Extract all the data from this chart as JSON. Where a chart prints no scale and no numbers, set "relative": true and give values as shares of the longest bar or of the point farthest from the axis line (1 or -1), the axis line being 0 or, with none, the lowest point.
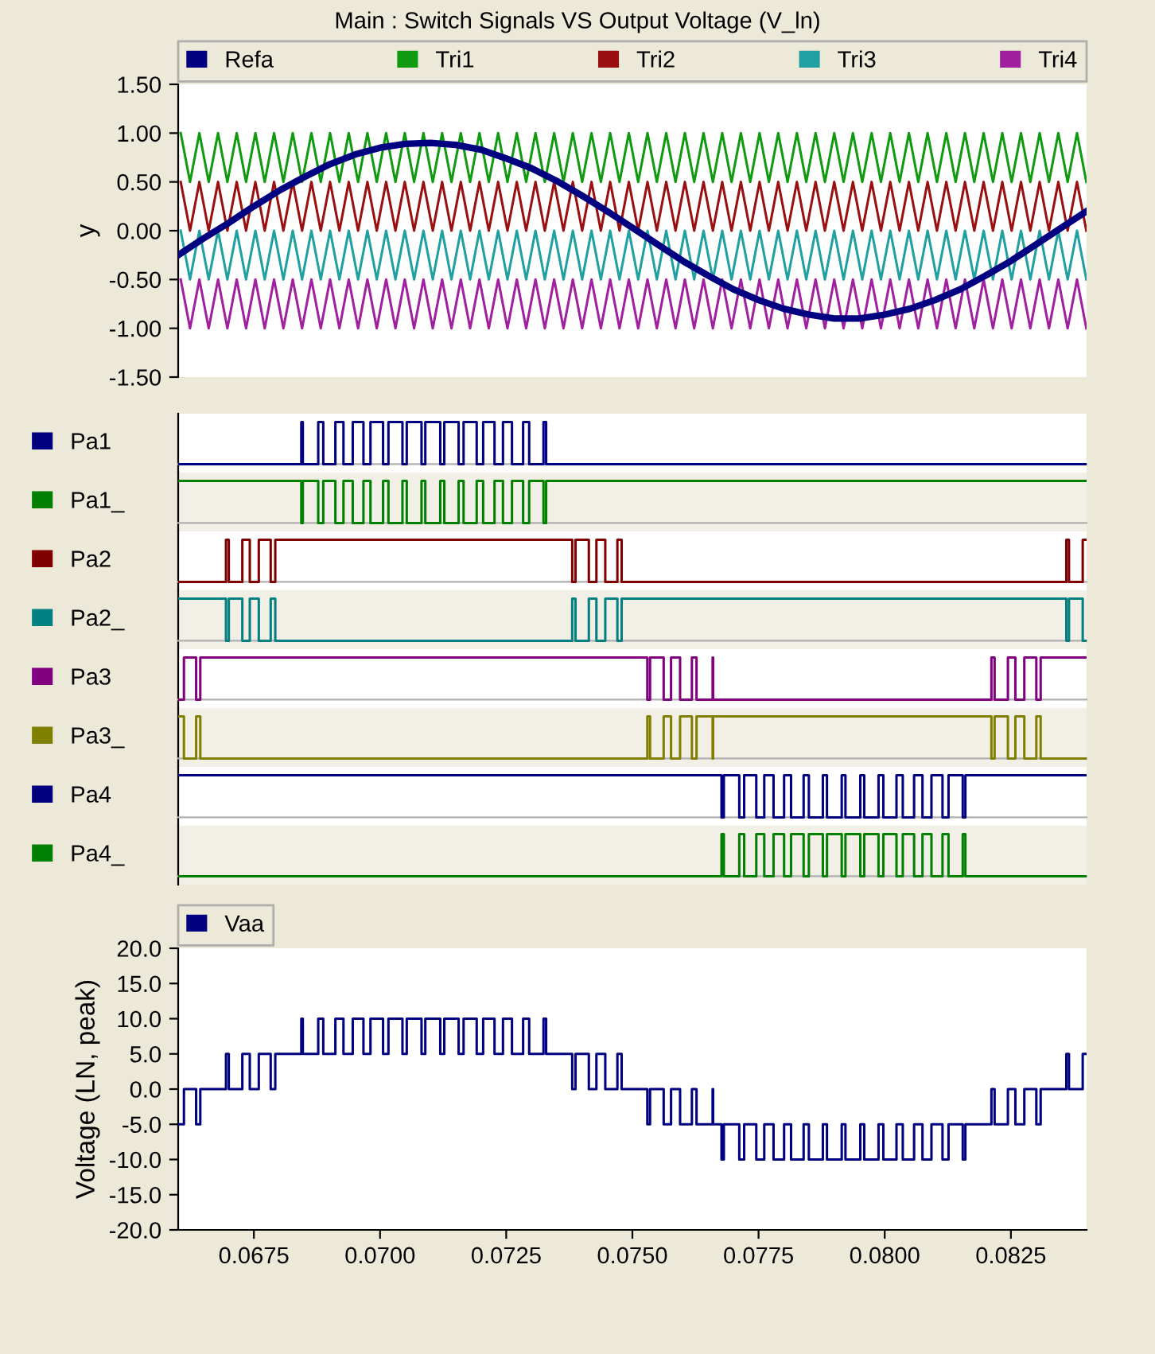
{
  "chart_data": [
    {
      "type": "line",
      "title": "Main : Switch Signals VS Output Voltage (V_ln)",
      "ylabel": "y",
      "xlim": [
        0.066,
        0.084
      ],
      "ylim": [
        -1.5,
        1.5
      ],
      "yticks": [
        {
          "value": 1.5,
          "label": "1.50"
        },
        {
          "value": 1.0,
          "label": "1.00"
        },
        {
          "value": 0.5,
          "label": "0.50"
        },
        {
          "value": 0,
          "label": "0.00"
        },
        {
          "value": -0.5,
          "label": "-0.50"
        },
        {
          "value": -1.0,
          "label": "-1.00"
        },
        {
          "value": -1.5,
          "label": "-1.50"
        }
      ],
      "tick_labels": "y",
      "legend": "top",
      "x": [
        0.06605,
        0.066235,
        0.06642,
        0.066605,
        0.06679,
        0.066975,
        0.06716,
        0.067345,
        0.06753,
        0.067715,
        0.0679,
        0.068085,
        0.06827,
        0.068455,
        0.06864,
        0.068825,
        0.06901,
        0.069195,
        0.06938,
        0.069565,
        0.06975,
        0.069935,
        0.07012,
        0.070305,
        0.07049,
        0.070675,
        0.07086,
        0.071045,
        0.07123,
        0.071415,
        0.0716,
        0.071785,
        0.07197,
        0.072155,
        0.07234,
        0.072525,
        0.07271,
        0.072895,
        0.07308,
        0.073265,
        0.07345,
        0.073635,
        0.07382,
        0.074005,
        0.07419,
        0.074375,
        0.07456,
        0.074745,
        0.07493,
        0.075115,
        0.0753,
        0.075485,
        0.07567,
        0.075855,
        0.07604,
        0.076225,
        0.07641,
        0.076595,
        0.07678,
        0.076965,
        0.07715,
        0.077335,
        0.07752,
        0.077705,
        0.07789,
        0.078075,
        0.07826,
        0.078445,
        0.07863,
        0.078815,
        0.079,
        0.079185,
        0.07937,
        0.079555,
        0.07974,
        0.079925,
        0.08011,
        0.080295,
        0.08048,
        0.080665,
        0.08085,
        0.081035,
        0.08122,
        0.081405,
        0.08159,
        0.081775,
        0.08196,
        0.082145,
        0.08233,
        0.082515,
        0.0827,
        0.082885,
        0.08307,
        0.083255,
        0.08344,
        0.083625,
        0.08381,
        0.083995
      ],
      "series": [
        {
          "name": "Refa",
          "color": "#000080",
          "x": [
            0.066,
            0.0665,
            0.067,
            0.0675,
            0.068,
            0.0685,
            0.069,
            0.0695,
            0.07,
            0.0705,
            0.071,
            0.0715,
            0.072,
            0.0725,
            0.073,
            0.0735,
            0.074,
            0.0745,
            0.075,
            0.0755,
            0.076,
            0.0765,
            0.077,
            0.0775,
            0.078,
            0.0785,
            0.079,
            0.0795,
            0.08,
            0.0805,
            0.081,
            0.0815,
            0.082,
            0.0825,
            0.083,
            0.0835,
            0.084
          ],
          "values": [
            -0.25,
            -0.08,
            0.08,
            0.25,
            0.41,
            0.55,
            0.68,
            0.78,
            0.85,
            0.89,
            0.9,
            0.88,
            0.83,
            0.74,
            0.64,
            0.51,
            0.36,
            0.2,
            0.03,
            -0.14,
            -0.31,
            -0.46,
            -0.6,
            -0.71,
            -0.8,
            -0.86,
            -0.9,
            -0.9,
            -0.86,
            -0.8,
            -0.71,
            -0.6,
            -0.46,
            -0.31,
            -0.14,
            0.03,
            0.2
          ]
        },
        {
          "name": "Tri1",
          "color": "#109a10",
          "values": [
            1.0,
            0.5,
            1.0,
            0.5,
            1.0,
            0.5,
            1.0,
            0.5,
            1.0,
            0.5,
            1.0,
            0.5,
            1.0,
            0.5,
            1.0,
            0.5,
            1.0,
            0.5,
            1.0,
            0.5,
            1.0,
            0.5,
            1.0,
            0.5,
            1.0,
            0.5,
            1.0,
            0.5,
            1.0,
            0.5,
            1.0,
            0.5,
            1.0,
            0.5,
            1.0,
            0.5,
            1.0,
            0.5,
            1.0,
            0.5,
            1.0,
            0.5,
            1.0,
            0.5,
            1.0,
            0.5,
            1.0,
            0.5,
            1.0,
            0.5,
            1.0,
            0.5,
            1.0,
            0.5,
            1.0,
            0.5,
            1.0,
            0.5,
            1.0,
            0.5,
            1.0,
            0.5,
            1.0,
            0.5,
            1.0,
            0.5,
            1.0,
            0.5,
            1.0,
            0.5,
            1.0,
            0.5,
            1.0,
            0.5,
            1.0,
            0.5,
            1.0,
            0.5,
            1.0,
            0.5,
            1.0,
            0.5,
            1.0,
            0.5,
            1.0,
            0.5,
            1.0,
            0.5,
            1.0,
            0.5,
            1.0,
            0.5,
            1.0,
            0.5,
            1.0,
            0.5,
            1.0,
            0.5
          ]
        },
        {
          "name": "Tri2",
          "color": "#9a1010",
          "values": [
            0.5,
            0,
            0.5,
            0,
            0.5,
            0,
            0.5,
            0,
            0.5,
            0,
            0.5,
            0,
            0.5,
            0,
            0.5,
            0,
            0.5,
            0,
            0.5,
            0,
            0.5,
            0,
            0.5,
            0,
            0.5,
            0,
            0.5,
            0,
            0.5,
            0,
            0.5,
            0,
            0.5,
            0,
            0.5,
            0,
            0.5,
            0,
            0.5,
            0,
            0.5,
            0,
            0.5,
            0,
            0.5,
            0,
            0.5,
            0,
            0.5,
            0,
            0.5,
            0,
            0.5,
            0,
            0.5,
            0,
            0.5,
            0,
            0.5,
            0,
            0.5,
            0,
            0.5,
            0,
            0.5,
            0,
            0.5,
            0,
            0.5,
            0,
            0.5,
            0,
            0.5,
            0,
            0.5,
            0,
            0.5,
            0,
            0.5,
            0,
            0.5,
            0,
            0.5,
            0,
            0.5,
            0,
            0.5,
            0,
            0.5,
            0,
            0.5,
            0,
            0.5,
            0,
            0.5,
            0,
            0.5,
            0
          ]
        },
        {
          "name": "Tri3",
          "color": "#20a0a0",
          "values": [
            0,
            -0.5,
            0,
            -0.5,
            0,
            -0.5,
            0,
            -0.5,
            0,
            -0.5,
            0,
            -0.5,
            0,
            -0.5,
            0,
            -0.5,
            0,
            -0.5,
            0,
            -0.5,
            0,
            -0.5,
            0,
            -0.5,
            0,
            -0.5,
            0,
            -0.5,
            0,
            -0.5,
            0,
            -0.5,
            0,
            -0.5,
            0,
            -0.5,
            0,
            -0.5,
            0,
            -0.5,
            0,
            -0.5,
            0,
            -0.5,
            0,
            -0.5,
            0,
            -0.5,
            0,
            -0.5,
            0,
            -0.5,
            0,
            -0.5,
            0,
            -0.5,
            0,
            -0.5,
            0,
            -0.5,
            0,
            -0.5,
            0,
            -0.5,
            0,
            -0.5,
            0,
            -0.5,
            0,
            -0.5,
            0,
            -0.5,
            0,
            -0.5,
            0,
            -0.5,
            0,
            -0.5,
            0,
            -0.5,
            0,
            -0.5,
            0,
            -0.5,
            0,
            -0.5,
            0,
            -0.5,
            0,
            -0.5,
            0,
            -0.5,
            0,
            -0.5,
            0,
            -0.5,
            0,
            -0.5
          ]
        },
        {
          "name": "Tri4",
          "color": "#a020a0",
          "values": [
            -0.5,
            -1.0,
            -0.5,
            -1.0,
            -0.5,
            -1.0,
            -0.5,
            -1.0,
            -0.5,
            -1.0,
            -0.5,
            -1.0,
            -0.5,
            -1.0,
            -0.5,
            -1.0,
            -0.5,
            -1.0,
            -0.5,
            -1.0,
            -0.5,
            -1.0,
            -0.5,
            -1.0,
            -0.5,
            -1.0,
            -0.5,
            -1.0,
            -0.5,
            -1.0,
            -0.5,
            -1.0,
            -0.5,
            -1.0,
            -0.5,
            -1.0,
            -0.5,
            -1.0,
            -0.5,
            -1.0,
            -0.5,
            -1.0,
            -0.5,
            -1.0,
            -0.5,
            -1.0,
            -0.5,
            -1.0,
            -0.5,
            -1.0,
            -0.5,
            -1.0,
            -0.5,
            -1.0,
            -0.5,
            -1.0,
            -0.5,
            -1.0,
            -0.5,
            -1.0,
            -0.5,
            -1.0,
            -0.5,
            -1.0,
            -0.5,
            -1.0,
            -0.5,
            -1.0,
            -0.5,
            -1.0,
            -0.5,
            -1.0,
            -0.5,
            -1.0,
            -0.5,
            -1.0,
            -0.5,
            -1.0,
            -0.5,
            -1.0,
            -0.5,
            -1.0,
            -0.5,
            -1.0,
            -0.5,
            -1.0,
            -0.5,
            -1.0,
            -0.5,
            -1.0,
            -0.5,
            -1.0,
            -0.5,
            -1.0,
            -0.5,
            -1.0,
            -0.5,
            -1.0
          ]
        }
      ]
    },
    {
      "type": "step",
      "relative": true,
      "tick_labels": false,
      "legend": "left",
      "xlim": [
        0.066,
        0.084
      ],
      "x": [
        0.066,
        0.06844,
        0.06847,
        0.068775,
        0.068875,
        0.069115,
        0.069275,
        0.069459,
        0.069671,
        0.06981,
        0.07006,
        0.070166,
        0.070444,
        0.070529,
        0.070822,
        0.070897,
        0.071193,
        0.071273,
        0.071557,
        0.071655,
        0.071915,
        0.072043,
        0.072268,
        0.072436,
        0.072614,
        0.072835,
        0.072955,
        0.073239,
        0.073291,
        0.084
      ],
      "series": [
        {
          "name": "Pa1",
          "color": "#000080",
          "values": [
            0,
            1,
            0,
            1,
            0,
            1,
            0,
            1,
            0,
            1,
            0,
            1,
            0,
            1,
            0,
            1,
            0,
            1,
            0,
            1,
            0,
            1,
            0,
            1,
            0,
            1,
            0,
            1,
            0,
            0
          ]
        }
      ]
    },
    {
      "type": "step",
      "relative": true,
      "tick_labels": false,
      "legend": "left",
      "xlim": [
        0.066,
        0.084
      ],
      "x": [
        0.066,
        0.06844,
        0.06847,
        0.068775,
        0.068875,
        0.069115,
        0.069275,
        0.069459,
        0.069671,
        0.06981,
        0.07006,
        0.070166,
        0.070444,
        0.070529,
        0.070822,
        0.070897,
        0.071193,
        0.071273,
        0.071557,
        0.071655,
        0.071915,
        0.072043,
        0.072268,
        0.072436,
        0.072614,
        0.072835,
        0.072955,
        0.073239,
        0.073291,
        0.084
      ],
      "series": [
        {
          "name": "Pa1_",
          "color": "#008000",
          "values": [
            1,
            0,
            1,
            0,
            1,
            0,
            1,
            0,
            1,
            0,
            1,
            0,
            1,
            0,
            1,
            0,
            1,
            0,
            1,
            0,
            1,
            0,
            1,
            0,
            1,
            0,
            1,
            0,
            1,
            1
          ]
        }
      ]
    },
    {
      "type": "step",
      "relative": true,
      "tick_labels": false,
      "legend": "left",
      "xlim": [
        0.066,
        0.084
      ],
      "x": [
        0.066,
        0.066947,
        0.067003,
        0.067271,
        0.067419,
        0.067597,
        0.067833,
        0.067924,
        0.073808,
        0.073873,
        0.074137,
        0.074287,
        0.074463,
        0.074703,
        0.074787,
        0.083599,
        0.083651,
        0.083923,
        0.084
      ],
      "series": [
        {
          "name": "Pa2",
          "color": "#800000",
          "values": [
            0,
            1,
            0,
            1,
            0,
            1,
            0,
            1,
            0,
            1,
            0,
            1,
            0,
            1,
            0,
            1,
            0,
            1,
            1
          ]
        }
      ]
    },
    {
      "type": "step",
      "relative": true,
      "tick_labels": false,
      "legend": "left",
      "xlim": [
        0.066,
        0.084
      ],
      "x": [
        0.066,
        0.066947,
        0.067003,
        0.067271,
        0.067419,
        0.067597,
        0.067833,
        0.067924,
        0.073808,
        0.073873,
        0.074137,
        0.074287,
        0.074463,
        0.074703,
        0.074787,
        0.083599,
        0.083651,
        0.083923,
        0.084
      ],
      "series": [
        {
          "name": "Pa2_",
          "color": "#008080",
          "values": [
            1,
            0,
            1,
            0,
            1,
            0,
            1,
            0,
            1,
            0,
            1,
            0,
            1,
            0,
            1,
            0,
            1,
            0,
            0
          ]
        }
      ]
    },
    {
      "type": "step",
      "relative": true,
      "tick_labels": false,
      "legend": "left",
      "xlim": [
        0.066,
        0.084
      ],
      "x": [
        0.066,
        0.066114,
        0.066356,
        0.066438,
        0.075296,
        0.07535,
        0.07562,
        0.075766,
        0.075945,
        0.076179,
        0.076271,
        0.07659,
        0.0766,
        0.082114,
        0.082177,
        0.082441,
        0.082589,
        0.082766,
        0.083004,
        0.08309,
        0.084
      ],
      "series": [
        {
          "name": "Pa3",
          "color": "#800080",
          "values": [
            0,
            1,
            0,
            1,
            0,
            1,
            0,
            1,
            0,
            1,
            0,
            1,
            0,
            1,
            0,
            1,
            0,
            1,
            0,
            1,
            1
          ]
        }
      ]
    },
    {
      "type": "step",
      "relative": true,
      "tick_labels": false,
      "legend": "left",
      "xlim": [
        0.066,
        0.084
      ],
      "x": [
        0.066,
        0.066114,
        0.066356,
        0.066438,
        0.075296,
        0.07535,
        0.07562,
        0.075766,
        0.075945,
        0.076179,
        0.076271,
        0.07659,
        0.0766,
        0.082114,
        0.082177,
        0.082441,
        0.082589,
        0.082766,
        0.083004,
        0.08309,
        0.084
      ],
      "series": [
        {
          "name": "Pa3_",
          "color": "#808000",
          "values": [
            1,
            0,
            1,
            0,
            1,
            0,
            1,
            0,
            1,
            0,
            1,
            0,
            1,
            0,
            1,
            0,
            1,
            0,
            1,
            0,
            0
          ]
        }
      ]
    },
    {
      "type": "step",
      "relative": true,
      "tick_labels": false,
      "legend": "left",
      "xlim": [
        0.066,
        0.084
      ],
      "x": [
        0.066,
        0.076766,
        0.076812,
        0.077118,
        0.077215,
        0.077455,
        0.077613,
        0.077797,
        0.078006,
        0.078144,
        0.078393,
        0.078497,
        0.078774,
        0.078856,
        0.079148,
        0.079222,
        0.079516,
        0.079594,
        0.079877,
        0.079973,
        0.080233,
        0.080358,
        0.080582,
        0.080748,
        0.080926,
        0.081145,
        0.081264,
        0.081546,
        0.081598,
        0.084
      ],
      "series": [
        {
          "name": "Pa4",
          "color": "#000080",
          "values": [
            1,
            0,
            1,
            0,
            1,
            0,
            1,
            0,
            1,
            0,
            1,
            0,
            1,
            0,
            1,
            0,
            1,
            0,
            1,
            0,
            1,
            0,
            1,
            0,
            1,
            0,
            1,
            0,
            1,
            1
          ]
        }
      ]
    },
    {
      "type": "step",
      "relative": true,
      "tick_labels": false,
      "legend": "left",
      "xlim": [
        0.066,
        0.084
      ],
      "x": [
        0.066,
        0.076766,
        0.076812,
        0.077118,
        0.077215,
        0.077455,
        0.077613,
        0.077797,
        0.078006,
        0.078144,
        0.078393,
        0.078497,
        0.078774,
        0.078856,
        0.079148,
        0.079222,
        0.079516,
        0.079594,
        0.079877,
        0.079973,
        0.080233,
        0.080358,
        0.080582,
        0.080748,
        0.080926,
        0.081145,
        0.081264,
        0.081546,
        0.081598,
        0.084
      ],
      "series": [
        {
          "name": "Pa4_",
          "color": "#008000",
          "values": [
            0,
            1,
            0,
            1,
            0,
            1,
            0,
            1,
            0,
            1,
            0,
            1,
            0,
            1,
            0,
            1,
            0,
            1,
            0,
            1,
            0,
            1,
            0,
            1,
            0,
            1,
            0,
            1,
            0,
            0
          ]
        }
      ]
    },
    {
      "type": "step",
      "ylabel": "Voltage (LN, peak)",
      "xlim": [
        0.066,
        0.084
      ],
      "ylim": [
        -20,
        20
      ],
      "legend": "top left",
      "yticks": [
        {
          "value": 20,
          "label": "20.0"
        },
        {
          "value": 15,
          "label": "15.0"
        },
        {
          "value": 10,
          "label": "10.0"
        },
        {
          "value": 5,
          "label": "5.0"
        },
        {
          "value": 0,
          "label": "0.0"
        },
        {
          "value": -5,
          "label": "-5.0"
        },
        {
          "value": -10,
          "label": "-10.0"
        },
        {
          "value": -15,
          "label": "-15.0"
        },
        {
          "value": -20,
          "label": "-20.0"
        }
      ],
      "xticks": [
        {
          "value": 0.0675,
          "label": "0.0675"
        },
        {
          "value": 0.07,
          "label": "0.0700"
        },
        {
          "value": 0.0725,
          "label": "0.0725"
        },
        {
          "value": 0.075,
          "label": "0.0750"
        },
        {
          "value": 0.0775,
          "label": "0.0775"
        },
        {
          "value": 0.08,
          "label": "0.0800"
        },
        {
          "value": 0.0825,
          "label": "0.0825"
        }
      ],
      "x": [
        0.066,
        0.066114,
        0.066356,
        0.066438,
        0.066947,
        0.067003,
        0.067271,
        0.067419,
        0.067597,
        0.067833,
        0.067924,
        0.06844,
        0.06847,
        0.068775,
        0.068875,
        0.069115,
        0.069275,
        0.069459,
        0.069671,
        0.06981,
        0.07006,
        0.070166,
        0.070444,
        0.070529,
        0.070822,
        0.070897,
        0.071193,
        0.071273,
        0.071557,
        0.071655,
        0.071915,
        0.072043,
        0.072268,
        0.072436,
        0.072614,
        0.072835,
        0.072955,
        0.073239,
        0.073291,
        0.073808,
        0.073873,
        0.074137,
        0.074287,
        0.074463,
        0.074703,
        0.074787,
        0.075296,
        0.07535,
        0.07562,
        0.075766,
        0.075945,
        0.076179,
        0.076271,
        0.07659,
        0.0766,
        0.076766,
        0.076812,
        0.077118,
        0.077215,
        0.077455,
        0.077613,
        0.077797,
        0.078006,
        0.078144,
        0.078393,
        0.078497,
        0.078774,
        0.078856,
        0.079148,
        0.079222,
        0.079516,
        0.079594,
        0.079877,
        0.079973,
        0.080233,
        0.080358,
        0.080582,
        0.080748,
        0.080926,
        0.081145,
        0.081264,
        0.081546,
        0.081598,
        0.082114,
        0.082177,
        0.082441,
        0.082589,
        0.082766,
        0.083004,
        0.08309,
        0.083599,
        0.083651,
        0.083923,
        0.084
      ],
      "series": [
        {
          "name": "Vaa",
          "color": "#000080",
          "values": [
            -5,
            0,
            -5,
            0,
            5,
            0,
            5,
            0,
            5,
            0,
            5,
            10,
            5,
            10,
            5,
            10,
            5,
            10,
            5,
            10,
            5,
            10,
            5,
            10,
            5,
            10,
            5,
            10,
            5,
            10,
            5,
            10,
            5,
            10,
            5,
            10,
            5,
            10,
            5,
            0,
            5,
            0,
            5,
            0,
            5,
            0,
            -5,
            0,
            -5,
            0,
            -5,
            0,
            -5,
            0,
            -5,
            -10,
            -5,
            -10,
            -5,
            -10,
            -5,
            -10,
            -5,
            -10,
            -5,
            -10,
            -5,
            -10,
            -5,
            -10,
            -5,
            -10,
            -5,
            -10,
            -5,
            -10,
            -5,
            -10,
            -5,
            -10,
            -5,
            -10,
            -5,
            0,
            -5,
            0,
            -5,
            0,
            -5,
            0,
            5,
            0,
            5,
            5
          ]
        }
      ]
    }
  ]
}
